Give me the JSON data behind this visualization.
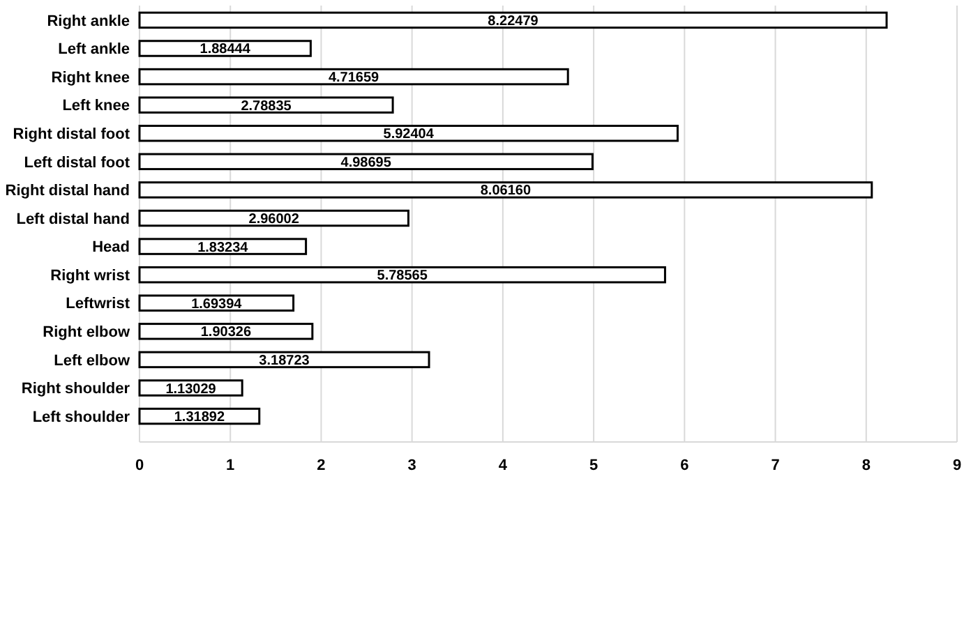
{
  "chart_data": {
    "type": "bar",
    "orientation": "horizontal",
    "categories": [
      "Right ankle",
      "Left ankle",
      "Right knee",
      "Left knee",
      "Right distal foot",
      "Left distal foot",
      "Right distal hand",
      "Left distal hand",
      "Head",
      "Right wrist",
      "Leftwrist",
      "Right elbow",
      "Left elbow",
      "Right shoulder",
      "Left shoulder"
    ],
    "values": [
      8.22479,
      1.88444,
      4.71659,
      2.78835,
      5.92404,
      4.98695,
      8.0616,
      2.96002,
      1.83234,
      5.78565,
      1.69394,
      1.90326,
      3.18723,
      1.13029,
      1.31892
    ],
    "value_labels": [
      "8.22479",
      "1.88444",
      "4.71659",
      "2.78835",
      "5.92404",
      "4.98695",
      "8.06160",
      "2.96002",
      "1.83234",
      "5.78565",
      "1.69394",
      "1.90326",
      "3.18723",
      "1.13029",
      "1.31892"
    ],
    "color": "#ffffff",
    "xlim": [
      0,
      9
    ],
    "xticks": [
      0,
      1,
      2,
      3,
      4,
      5,
      6,
      7,
      8,
      9
    ],
    "grid": "x"
  }
}
